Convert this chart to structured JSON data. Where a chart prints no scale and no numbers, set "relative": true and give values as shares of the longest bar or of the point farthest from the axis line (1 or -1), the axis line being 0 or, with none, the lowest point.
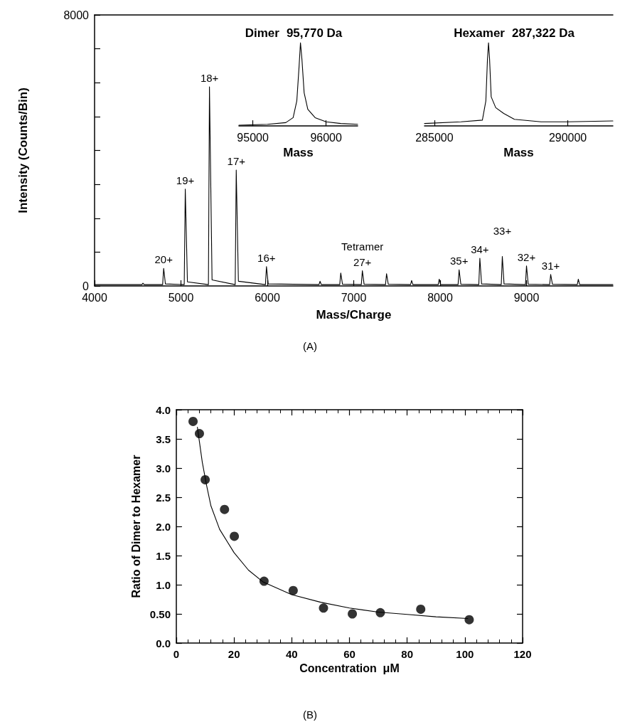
{
  "chart_data": [
    {
      "type": "line",
      "xlabel": "Mass/Charge",
      "ylabel": "Intensity (Counts/Bin)",
      "color": "#000000",
      "xlim": [
        4000,
        10000
      ],
      "xticks": [
        4000,
        5000,
        6000,
        7000,
        8000,
        9000
      ],
      "ylim": [
        0,
        8000
      ],
      "yticks": [
        0,
        {
          "value": 1000,
          "label": null
        },
        {
          "value": 2000,
          "label": null
        },
        {
          "value": 3000,
          "label": null
        },
        {
          "value": 4000,
          "label": null
        },
        {
          "value": 5000,
          "label": null
        },
        {
          "value": 6000,
          "label": null
        },
        {
          "value": 7000,
          "label": null
        },
        8000
      ],
      "x": [
        4000,
        4548,
        4560,
        4575,
        4788,
        4800,
        4820,
        5038,
        5050,
        5075,
        5318,
        5330,
        5360,
        5628,
        5640,
        5665,
        5978,
        5990,
        6010,
        6598,
        6610,
        6625,
        6838,
        6850,
        6870,
        7088,
        7100,
        7120,
        7368,
        7380,
        7400,
        7658,
        7670,
        7685,
        7978,
        7990,
        8005,
        8208,
        8220,
        8240,
        8448,
        8460,
        8480,
        8708,
        8720,
        8740,
        8988,
        9000,
        9020,
        9268,
        9280,
        9300,
        9588,
        9600,
        9615,
        10000
      ],
      "values": [
        40,
        40,
        80,
        40,
        40,
        520,
        60,
        40,
        2860,
        120,
        40,
        5880,
        180,
        40,
        3420,
        140,
        40,
        570,
        60,
        40,
        140,
        40,
        40,
        380,
        50,
        40,
        450,
        50,
        40,
        360,
        50,
        40,
        160,
        40,
        40,
        200,
        40,
        40,
        475,
        50,
        40,
        820,
        60,
        40,
        870,
        60,
        40,
        590,
        50,
        40,
        340,
        50,
        40,
        200,
        40,
        40
      ],
      "annotations": [
        {
          "text": "20+",
          "x": 4800,
          "y": 520
        },
        {
          "text": "19+",
          "x": 5050,
          "y": 2860
        },
        {
          "text": "18+",
          "x": 5330,
          "y": 5880
        },
        {
          "text": "17+",
          "x": 5640,
          "y": 3420
        },
        {
          "text": "16+",
          "x": 5990,
          "y": 570
        },
        {
          "text": "Tetramer",
          "x": 7100,
          "y": 450
        },
        {
          "text": "27+",
          "x": 7100,
          "y": 450
        },
        {
          "text": "35+",
          "x": 8220,
          "y": 475
        },
        {
          "text": "34+",
          "x": 8460,
          "y": 820
        },
        {
          "text": "33+",
          "x": 8720,
          "y": 870
        },
        {
          "text": "32+",
          "x": 9000,
          "y": 590
        },
        {
          "text": "31+",
          "x": 9280,
          "y": 340
        },
        "(A)"
      ]
    },
    {
      "type": "line",
      "title": "Dimer",
      "subtitle": "95,770 Da",
      "xlabel": "Mass",
      "relative": true,
      "color": "#000000",
      "xlim": [
        94810,
        96430
      ],
      "xticks": [
        95000,
        96000
      ],
      "x": [
        94810,
        95200,
        95450,
        95550,
        95600,
        95630,
        95650,
        95670,
        95700,
        95750,
        95850,
        96000,
        96200,
        96430
      ],
      "values": [
        0.01,
        0.02,
        0.04,
        0.1,
        0.3,
        0.7,
        1.0,
        0.8,
        0.4,
        0.2,
        0.1,
        0.05,
        0.03,
        0.02
      ]
    },
    {
      "type": "line",
      "title": "Hexamer",
      "subtitle": "287,322 Da",
      "xlabel": "Mass",
      "relative": true,
      "color": "#000000",
      "xlim": [
        284630,
        291690
      ],
      "xticks": [
        285000,
        290000
      ],
      "x": [
        284630,
        286000,
        286800,
        286930,
        286990,
        287030,
        287070,
        287130,
        287300,
        287600,
        288000,
        289000,
        290000,
        291690
      ],
      "values": [
        0.03,
        0.05,
        0.07,
        0.3,
        0.8,
        1.0,
        0.8,
        0.35,
        0.22,
        0.15,
        0.08,
        0.05,
        0.05,
        0.06
      ]
    },
    {
      "type": "scatter",
      "xlabel": "Concentration  μM",
      "ylabel": "Ratio of Dimer to Hexamer",
      "marker": "circle",
      "xlim": [
        0,
        120
      ],
      "xticks": [
        0,
        20,
        40,
        60,
        80,
        100,
        120
      ],
      "ylim": [
        0,
        4
      ],
      "yticks": [
        {
          "value": 0,
          "label": "0.0"
        },
        {
          "value": 0.5,
          "label": "0.50"
        },
        {
          "value": 1,
          "label": "1.0"
        },
        1.5,
        {
          "value": 2,
          "label": "2.0"
        },
        2.5,
        {
          "value": 3,
          "label": "3.0"
        },
        3.5,
        {
          "value": 4,
          "label": "4.0"
        }
      ],
      "series": [
        {
          "color": "#000000",
          "x": [
            5.8,
            8.0,
            10.0,
            16.7,
            20.1,
            30.4,
            40.5,
            51,
            61,
            70.7,
            84.7,
            101.5
          ],
          "values": [
            3.8,
            3.59,
            2.8,
            2.29,
            1.83,
            1.06,
            0.9,
            0.6,
            0.5,
            0.52,
            0.58,
            0.4
          ]
        },
        {
          "type": "line",
          "color": "#000000",
          "marker": "none",
          "x": [
            7.3,
            9,
            10.5,
            12,
            15,
            20,
            25,
            30,
            40,
            50,
            60,
            70,
            80,
            90,
            101
          ],
          "values": [
            3.7,
            3.1,
            2.7,
            2.35,
            1.95,
            1.55,
            1.25,
            1.05,
            0.83,
            0.7,
            0.6,
            0.53,
            0.49,
            0.45,
            0.42
          ]
        }
      ],
      "annotations": [
        "(B)"
      ]
    }
  ]
}
